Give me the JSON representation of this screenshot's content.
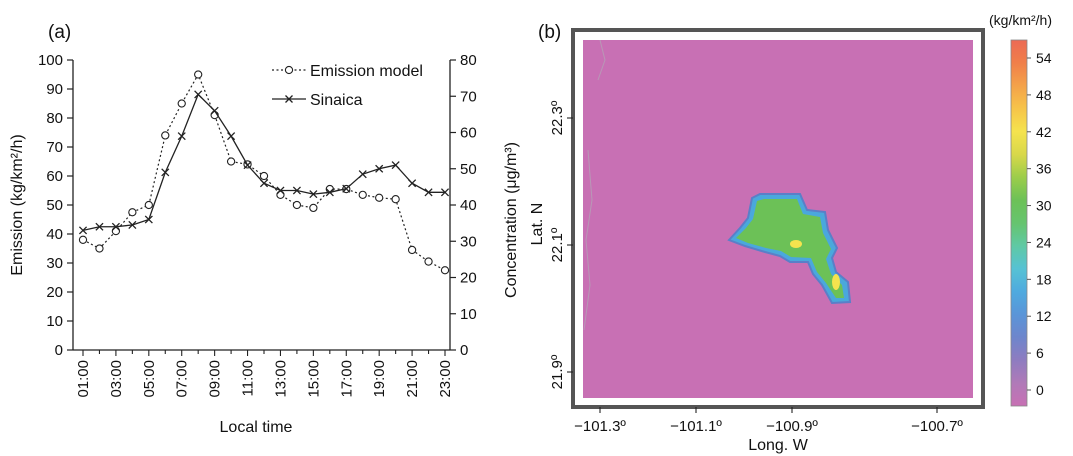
{
  "chart_data": [
    {
      "panel": "(a)",
      "type": "line",
      "xlabel": "Local time",
      "ylabel_left": "Emission (kg/km²/h)",
      "ylabel_right": "Concentration (μg/m³)",
      "ylim_left": [
        0,
        100
      ],
      "ylim_right": [
        0,
        80
      ],
      "yticks_left": [
        0,
        10,
        20,
        30,
        40,
        50,
        60,
        70,
        80,
        90,
        100
      ],
      "yticks_right": [
        0,
        10,
        20,
        30,
        40,
        50,
        60,
        70,
        80
      ],
      "xticks": [
        "01:00",
        "03:00",
        "05:00",
        "07:00",
        "09:00",
        "11:00",
        "13:00",
        "15:00",
        "17:00",
        "19:00",
        "21:00",
        "23:00"
      ],
      "x": [
        "01:00",
        "02:00",
        "03:00",
        "04:00",
        "05:00",
        "06:00",
        "07:00",
        "08:00",
        "09:00",
        "10:00",
        "11:00",
        "12:00",
        "13:00",
        "14:00",
        "15:00",
        "16:00",
        "17:00",
        "18:00",
        "19:00",
        "20:00",
        "21:00",
        "22:00",
        "23:00"
      ],
      "legend_position": "top-right",
      "series": [
        {
          "name": "Emission model",
          "axis": "left",
          "style": "dotted-circle",
          "values": [
            38,
            35,
            41,
            47.5,
            50,
            74,
            85,
            95,
            81,
            65,
            64,
            60,
            53.5,
            50,
            49,
            55.5,
            55.5,
            53.5,
            52.5,
            52,
            34.5,
            30.5,
            27.5
          ]
        },
        {
          "name": "Sinaica",
          "axis": "right",
          "style": "solid-cross",
          "values": [
            33,
            34,
            34,
            34.5,
            36,
            49,
            59,
            70.5,
            66,
            59,
            51,
            46,
            44,
            44,
            43,
            43.5,
            44.5,
            48.5,
            50,
            51,
            46,
            43.5,
            43.5
          ]
        }
      ]
    },
    {
      "panel": "(b)",
      "type": "heatmap",
      "xlabel": "Long. W",
      "ylabel": "Lat. N",
      "xticks": [
        "−101.3º",
        "−101.1º",
        "−100.9º",
        "−100.7º"
      ],
      "yticks": [
        "21.9º",
        "22.1º",
        "22.3º"
      ],
      "colorbar_unit": "(kg/km²/h)",
      "colorbar_ticks": [
        "0",
        "6",
        "12",
        "18",
        "24",
        "30",
        "36",
        "42",
        "48",
        "54"
      ],
      "colorbar_colors": [
        "#c870b4",
        "#b07ab8",
        "#8e7cc0",
        "#6e86cc",
        "#5a95d8",
        "#4faadf",
        "#56c2d4",
        "#5fc9a4",
        "#66c46e",
        "#6cc157",
        "#9ccd4a",
        "#d8d84a",
        "#f5e34e",
        "#f6c44a",
        "#f4a24a",
        "#f07f4a",
        "#ec6a55"
      ],
      "background_value_color": "#c870b4",
      "hotspot_color": "#6cc157",
      "peak_color": "#f5e34e"
    }
  ]
}
